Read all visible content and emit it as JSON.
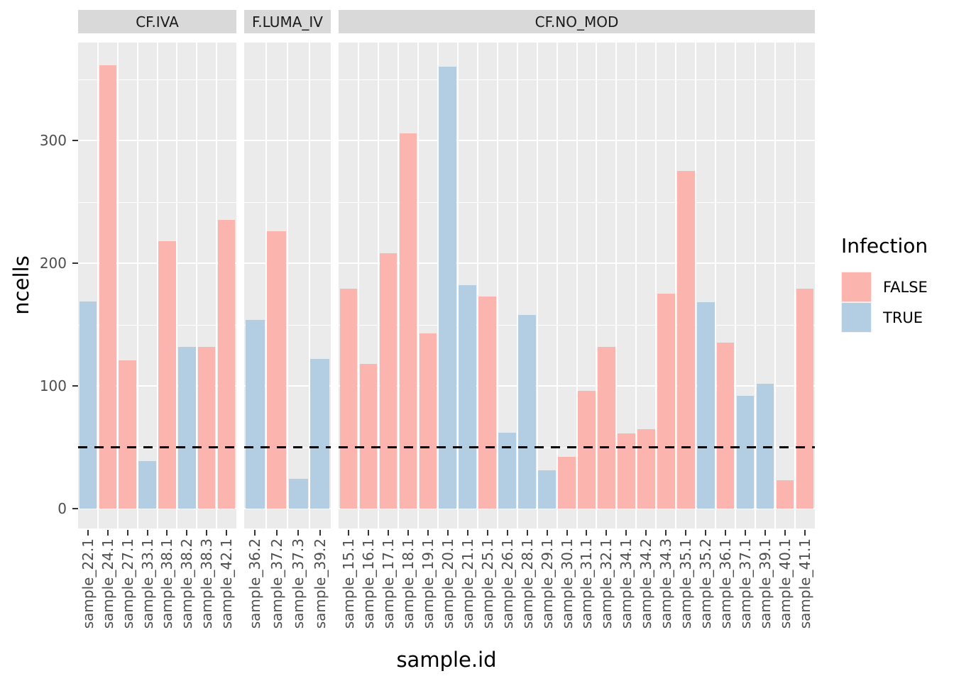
{
  "chart_data": {
    "type": "bar",
    "title": "",
    "xlabel": "sample.id",
    "ylabel": "ncells",
    "ylim": [
      0,
      380
    ],
    "yticks": [
      0,
      100,
      200,
      300
    ],
    "minor_gridlines": [
      50,
      150,
      250,
      350
    ],
    "grid": "on",
    "hline": {
      "value": 50,
      "style": "dashed",
      "color": "#000000"
    },
    "legend": {
      "title": "Infection",
      "position": "right",
      "entries": [
        {
          "label": "FALSE",
          "color": "#FBB4AE"
        },
        {
          "label": "TRUE",
          "color": "#B3CDE3"
        }
      ]
    },
    "facets": [
      {
        "label": "CF.IVA",
        "bars": [
          {
            "sample": "sample_22.1",
            "infection": "TRUE",
            "ncells": 169
          },
          {
            "sample": "sample_24.1",
            "infection": "FALSE",
            "ncells": 361
          },
          {
            "sample": "sample_27.1",
            "infection": "FALSE",
            "ncells": 121
          },
          {
            "sample": "sample_33.1",
            "infection": "TRUE",
            "ncells": 39
          },
          {
            "sample": "sample_38.1",
            "infection": "FALSE",
            "ncells": 218
          },
          {
            "sample": "sample_38.2",
            "infection": "TRUE",
            "ncells": 132
          },
          {
            "sample": "sample_38.3",
            "infection": "FALSE",
            "ncells": 132
          },
          {
            "sample": "sample_42.1",
            "infection": "FALSE",
            "ncells": 235
          }
        ]
      },
      {
        "label": "F.LUMA_IV",
        "bars": [
          {
            "sample": "sample_36.2",
            "infection": "TRUE",
            "ncells": 154
          },
          {
            "sample": "sample_37.2",
            "infection": "FALSE",
            "ncells": 226
          },
          {
            "sample": "sample_37.3",
            "infection": "TRUE",
            "ncells": 24
          },
          {
            "sample": "sample_39.2",
            "infection": "TRUE",
            "ncells": 122
          }
        ]
      },
      {
        "label": "CF.NO_MOD",
        "bars": [
          {
            "sample": "sample_15.1",
            "infection": "FALSE",
            "ncells": 179
          },
          {
            "sample": "sample_16.1",
            "infection": "FALSE",
            "ncells": 118
          },
          {
            "sample": "sample_17.1",
            "infection": "FALSE",
            "ncells": 208
          },
          {
            "sample": "sample_18.1",
            "infection": "FALSE",
            "ncells": 306
          },
          {
            "sample": "sample_19.1",
            "infection": "FALSE",
            "ncells": 143
          },
          {
            "sample": "sample_20.1",
            "infection": "TRUE",
            "ncells": 360
          },
          {
            "sample": "sample_21.1",
            "infection": "TRUE",
            "ncells": 182
          },
          {
            "sample": "sample_25.1",
            "infection": "FALSE",
            "ncells": 173
          },
          {
            "sample": "sample_26.1",
            "infection": "TRUE",
            "ncells": 62
          },
          {
            "sample": "sample_28.1",
            "infection": "TRUE",
            "ncells": 158
          },
          {
            "sample": "sample_29.1",
            "infection": "TRUE",
            "ncells": 31
          },
          {
            "sample": "sample_30.1",
            "infection": "FALSE",
            "ncells": 42
          },
          {
            "sample": "sample_31.1",
            "infection": "FALSE",
            "ncells": 96
          },
          {
            "sample": "sample_32.1",
            "infection": "FALSE",
            "ncells": 132
          },
          {
            "sample": "sample_34.1",
            "infection": "FALSE",
            "ncells": 61
          },
          {
            "sample": "sample_34.2",
            "infection": "FALSE",
            "ncells": 65
          },
          {
            "sample": "sample_34.3",
            "infection": "FALSE",
            "ncells": 175
          },
          {
            "sample": "sample_35.1",
            "infection": "FALSE",
            "ncells": 275
          },
          {
            "sample": "sample_35.2",
            "infection": "TRUE",
            "ncells": 168
          },
          {
            "sample": "sample_36.1",
            "infection": "FALSE",
            "ncells": 135
          },
          {
            "sample": "sample_37.1",
            "infection": "TRUE",
            "ncells": 92
          },
          {
            "sample": "sample_39.1",
            "infection": "TRUE",
            "ncells": 102
          },
          {
            "sample": "sample_40.1",
            "infection": "FALSE",
            "ncells": 23
          },
          {
            "sample": "sample_41.1",
            "infection": "FALSE",
            "ncells": 179
          }
        ]
      }
    ]
  },
  "colors": {
    "panel_background": "#EBEBEB",
    "strip_background": "#D9D9D9",
    "gridline": "#FFFFFF",
    "axis_text": "#4D4D4D",
    "bar_false": "#FBB4AE",
    "bar_true": "#B3CDE3"
  }
}
